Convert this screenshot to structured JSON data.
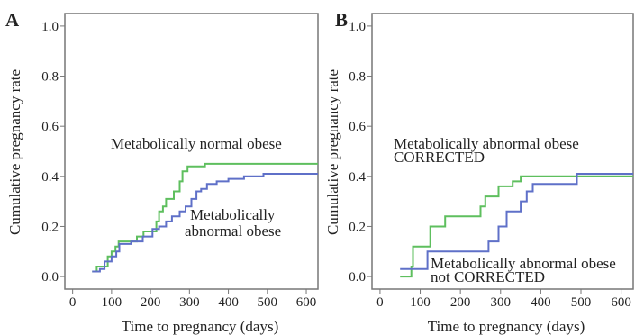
{
  "chart_data": [
    {
      "panel": "A",
      "type": "line",
      "step": true,
      "xlabel": "Time to pregnancy (days)",
      "ylabel": "Cumulative pregnancy rate",
      "xlim": [
        -20,
        630
      ],
      "ylim": [
        -0.05,
        1.05
      ],
      "xticks": [
        0,
        100,
        200,
        300,
        400,
        500,
        600
      ],
      "yticks": [
        "0.0",
        "0.2",
        "0.4",
        "0.6",
        "0.8",
        "1.0"
      ],
      "grid": false,
      "annotations": [
        {
          "text": "Metabolically normal obese",
          "color": "#222222"
        },
        {
          "text": [
            "Metabolically",
            "abnormal obese"
          ],
          "color": "#222222"
        }
      ],
      "series": [
        {
          "color": "#5ebf5e",
          "points": [
            [
              50,
              0.02
            ],
            [
              62,
              0.02
            ],
            [
              62,
              0.04
            ],
            [
              90,
              0.04
            ],
            [
              90,
              0.08
            ],
            [
              100,
              0.08
            ],
            [
              100,
              0.1
            ],
            [
              110,
              0.1
            ],
            [
              110,
              0.12
            ],
            [
              118,
              0.12
            ],
            [
              118,
              0.14
            ],
            [
              165,
              0.14
            ],
            [
              165,
              0.16
            ],
            [
              182,
              0.16
            ],
            [
              182,
              0.18
            ],
            [
              215,
              0.18
            ],
            [
              215,
              0.22
            ],
            [
              222,
              0.22
            ],
            [
              222,
              0.26
            ],
            [
              232,
              0.26
            ],
            [
              232,
              0.28
            ],
            [
              240,
              0.28
            ],
            [
              240,
              0.31
            ],
            [
              260,
              0.31
            ],
            [
              260,
              0.34
            ],
            [
              275,
              0.34
            ],
            [
              275,
              0.38
            ],
            [
              282,
              0.38
            ],
            [
              282,
              0.42
            ],
            [
              295,
              0.42
            ],
            [
              295,
              0.44
            ],
            [
              340,
              0.44
            ],
            [
              340,
              0.45
            ],
            [
              630,
              0.45
            ]
          ]
        },
        {
          "color": "#5f70c8",
          "points": [
            [
              50,
              0.02
            ],
            [
              70,
              0.02
            ],
            [
              70,
              0.03
            ],
            [
              82,
              0.03
            ],
            [
              82,
              0.06
            ],
            [
              100,
              0.06
            ],
            [
              100,
              0.08
            ],
            [
              112,
              0.08
            ],
            [
              112,
              0.1
            ],
            [
              120,
              0.1
            ],
            [
              120,
              0.13
            ],
            [
              150,
              0.13
            ],
            [
              150,
              0.14
            ],
            [
              180,
              0.14
            ],
            [
              180,
              0.16
            ],
            [
              205,
              0.16
            ],
            [
              205,
              0.19
            ],
            [
              222,
              0.19
            ],
            [
              222,
              0.2
            ],
            [
              240,
              0.2
            ],
            [
              240,
              0.22
            ],
            [
              255,
              0.22
            ],
            [
              255,
              0.24
            ],
            [
              275,
              0.24
            ],
            [
              275,
              0.26
            ],
            [
              290,
              0.26
            ],
            [
              290,
              0.28
            ],
            [
              305,
              0.28
            ],
            [
              305,
              0.31
            ],
            [
              318,
              0.31
            ],
            [
              318,
              0.34
            ],
            [
              330,
              0.34
            ],
            [
              330,
              0.35
            ],
            [
              345,
              0.35
            ],
            [
              345,
              0.37
            ],
            [
              370,
              0.37
            ],
            [
              370,
              0.38
            ],
            [
              400,
              0.38
            ],
            [
              400,
              0.39
            ],
            [
              440,
              0.39
            ],
            [
              440,
              0.4
            ],
            [
              490,
              0.4
            ],
            [
              490,
              0.41
            ],
            [
              630,
              0.41
            ]
          ]
        }
      ]
    },
    {
      "panel": "B",
      "type": "line",
      "step": true,
      "xlabel": "Time to pregnancy (days)",
      "ylabel": "Cumulative pregnancy rate",
      "xlim": [
        -20,
        630
      ],
      "ylim": [
        -0.05,
        1.05
      ],
      "xticks": [
        0,
        100,
        200,
        300,
        400,
        500,
        600
      ],
      "yticks": [
        "0.0",
        "0.2",
        "0.4",
        "0.6",
        "0.8",
        "1.0"
      ],
      "grid": false,
      "annotations": [
        {
          "text": [
            "Metabolically abnormal obese",
            "CORRECTED"
          ],
          "color": "#222222"
        },
        {
          "text": [
            "Metabolically abnormal obese",
            "not CORRECTED"
          ],
          "color": "#222222"
        }
      ],
      "series": [
        {
          "color": "#5ebf5e",
          "points": [
            [
              50,
              0.0
            ],
            [
              78,
              0.0
            ],
            [
              78,
              0.04
            ],
            [
              82,
              0.04
            ],
            [
              82,
              0.12
            ],
            [
              125,
              0.12
            ],
            [
              125,
              0.2
            ],
            [
              162,
              0.2
            ],
            [
              162,
              0.24
            ],
            [
              250,
              0.24
            ],
            [
              250,
              0.28
            ],
            [
              262,
              0.28
            ],
            [
              262,
              0.32
            ],
            [
              295,
              0.32
            ],
            [
              295,
              0.36
            ],
            [
              330,
              0.36
            ],
            [
              330,
              0.38
            ],
            [
              350,
              0.38
            ],
            [
              350,
              0.4
            ],
            [
              630,
              0.4
            ]
          ]
        },
        {
          "color": "#5f70c8",
          "points": [
            [
              50,
              0.03
            ],
            [
              118,
              0.03
            ],
            [
              118,
              0.1
            ],
            [
              270,
              0.1
            ],
            [
              270,
              0.14
            ],
            [
              295,
              0.14
            ],
            [
              295,
              0.2
            ],
            [
              315,
              0.2
            ],
            [
              315,
              0.26
            ],
            [
              350,
              0.26
            ],
            [
              350,
              0.3
            ],
            [
              365,
              0.3
            ],
            [
              365,
              0.34
            ],
            [
              380,
              0.34
            ],
            [
              380,
              0.37
            ],
            [
              490,
              0.37
            ],
            [
              490,
              0.41
            ],
            [
              630,
              0.41
            ]
          ]
        }
      ]
    }
  ]
}
